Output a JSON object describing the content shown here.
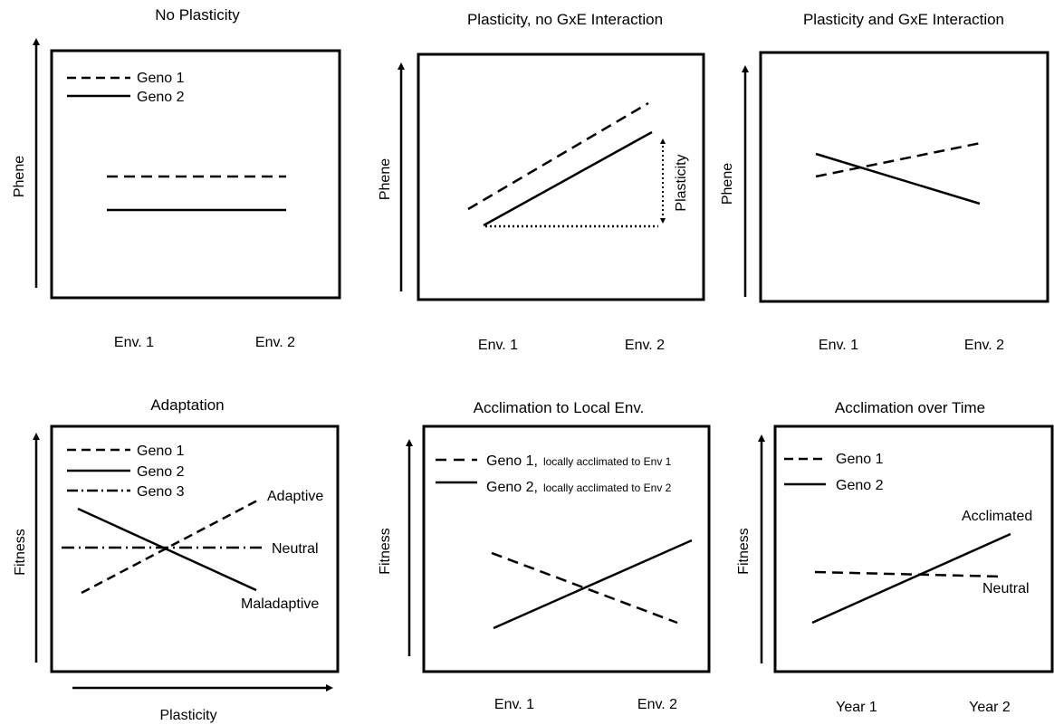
{
  "panels": {
    "p1": {
      "title": "No  Plasticity",
      "ylabel": "Phene",
      "xticks": [
        "Env. 1",
        "Env. 2"
      ],
      "legend": [
        "Geno 1",
        "Geno 2"
      ]
    },
    "p2": {
      "title": "Plasticity, no GxE Interaction",
      "ylabel": "Phene",
      "xticks": [
        "Env. 1",
        "Env. 2"
      ],
      "annotation": "Plasticity"
    },
    "p3": {
      "title": "Plasticity and GxE Interaction",
      "ylabel": "Phene",
      "xticks": [
        "Env. 1",
        "Env. 2"
      ]
    },
    "p4": {
      "title": "Adaptation",
      "ylabel": "Fitness",
      "xlabel": "Plasticity",
      "legend": [
        "Geno 1",
        "Geno 2",
        "Geno 3"
      ],
      "annotations": [
        "Adaptive",
        "Neutral",
        "Maladaptive"
      ]
    },
    "p5": {
      "title": "Acclimation to Local Env.",
      "ylabel": "Fitness",
      "xticks": [
        "Env. 1",
        "Env. 2"
      ],
      "legend": [
        {
          "name": "Geno 1,",
          "note": "locally acclimated to Env 1"
        },
        {
          "name": "Geno 2,",
          "note": "locally acclimated to Env 2"
        }
      ]
    },
    "p6": {
      "title": "Acclimation over Time",
      "ylabel": "Fitness",
      "xticks": [
        "Year 1",
        "Year 2"
      ],
      "legend": [
        "Geno 1",
        "Geno 2"
      ],
      "annotations": [
        "Acclimated",
        "Neutral"
      ]
    }
  },
  "style": {
    "line_color": "#000000",
    "background": "#ffffff"
  }
}
